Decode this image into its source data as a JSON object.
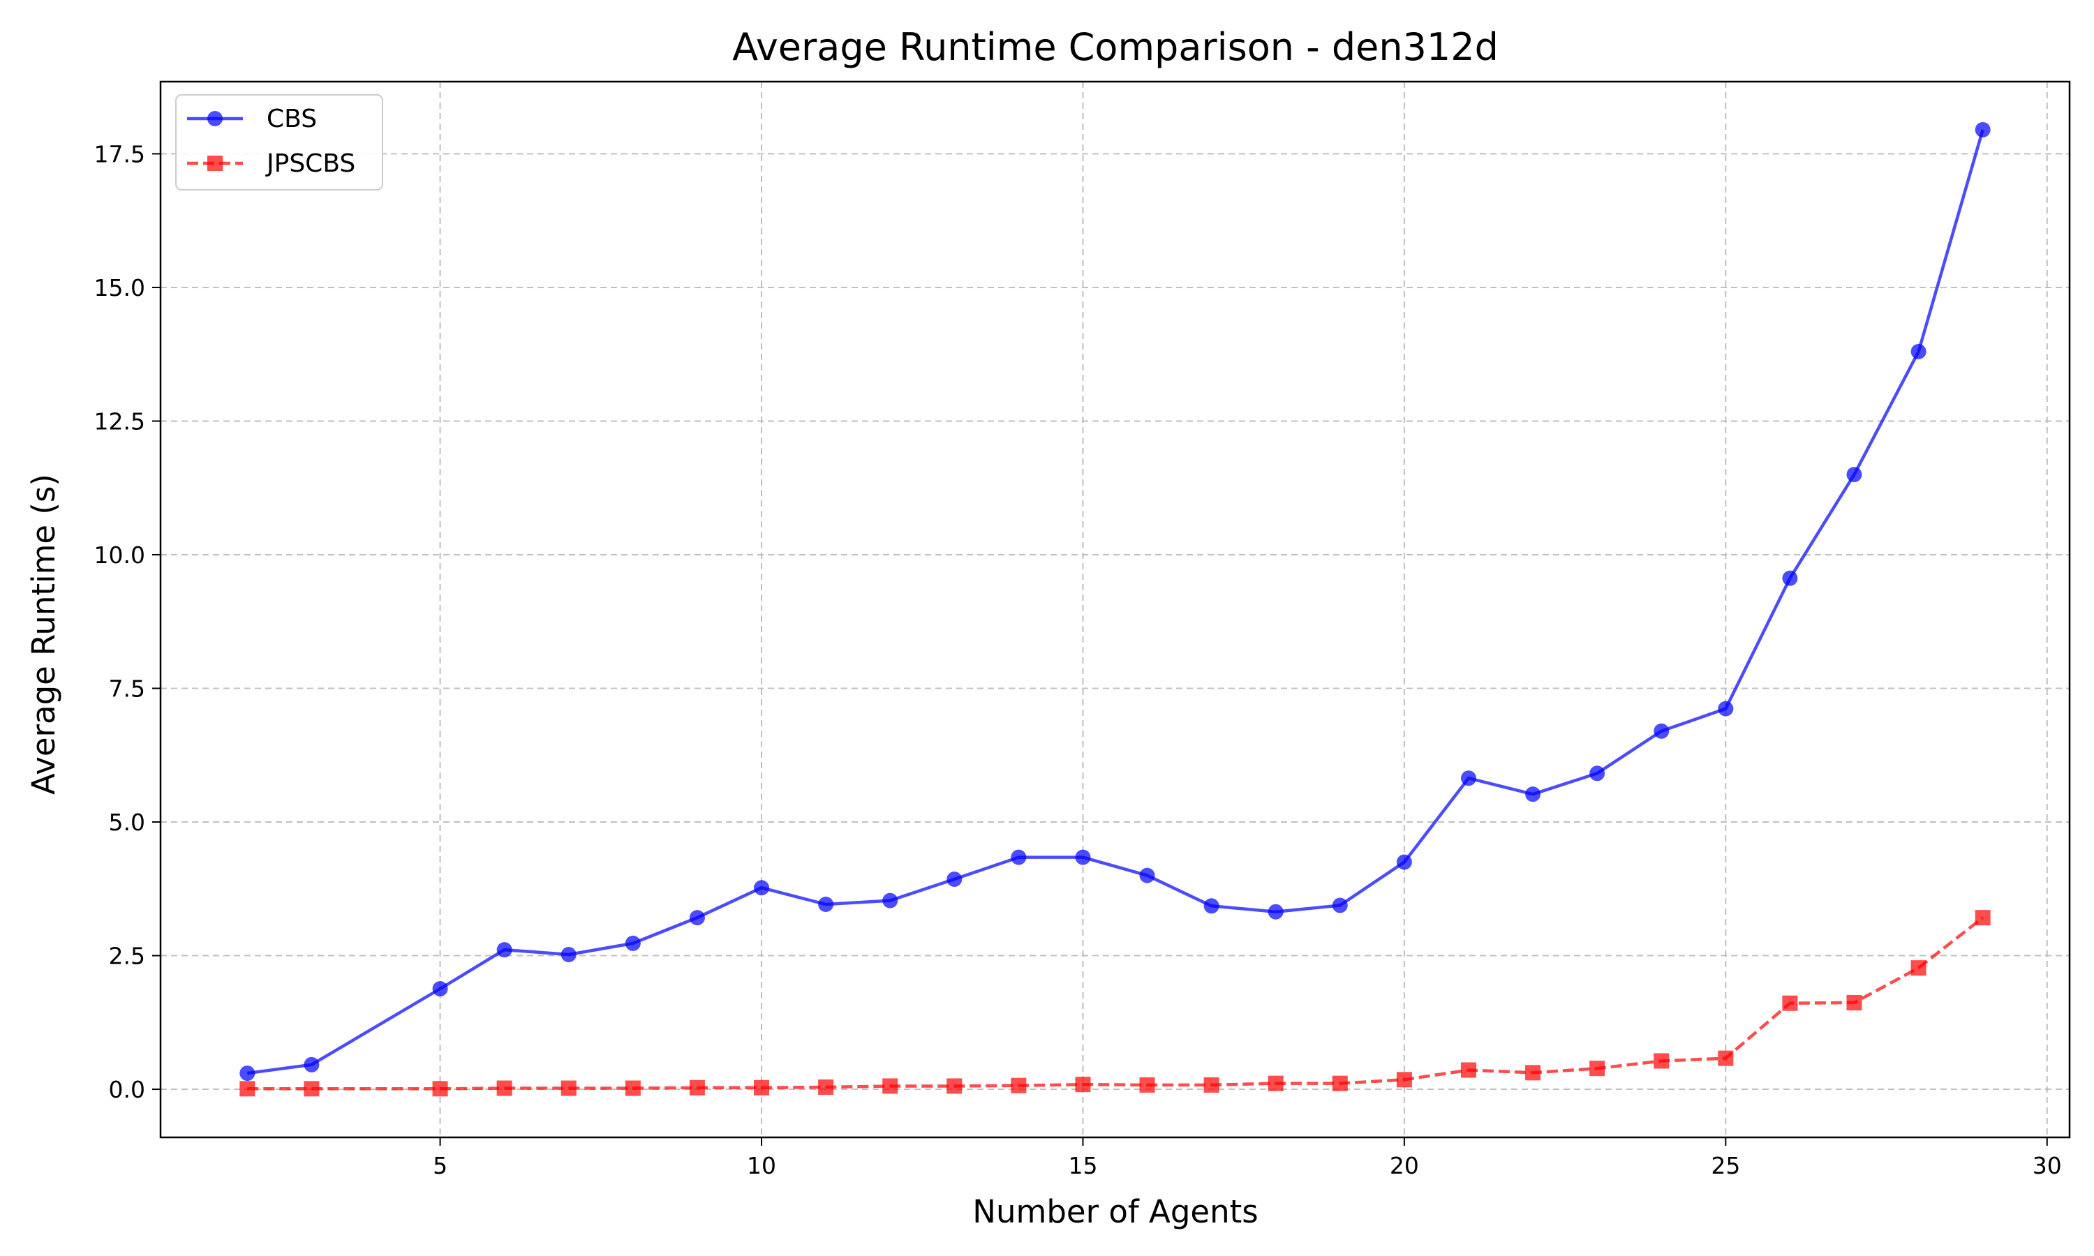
{
  "chart_data": {
    "type": "line",
    "title": "Average Runtime Comparison - den312d",
    "xlabel": "Number of Agents",
    "ylabel": "Average Runtime (s)",
    "xlim": [
      0.65,
      30.35
    ],
    "ylim": [
      -0.9,
      18.85
    ],
    "xticks": [
      5,
      10,
      15,
      20,
      25,
      30
    ],
    "xtick_labels": [
      "5",
      "10",
      "15",
      "20",
      "25",
      "30"
    ],
    "yticks": [
      0.0,
      2.5,
      5.0,
      7.5,
      10.0,
      12.5,
      15.0,
      17.5
    ],
    "ytick_labels": [
      "0.0",
      "2.5",
      "5.0",
      "7.5",
      "10.0",
      "12.5",
      "15.0",
      "17.5"
    ],
    "grid": true,
    "legend_position": "upper-left",
    "x": [
      2,
      3,
      5,
      6,
      7,
      8,
      9,
      10,
      11,
      12,
      13,
      14,
      15,
      16,
      17,
      18,
      19,
      20,
      21,
      22,
      23,
      24,
      25,
      26,
      27,
      28,
      29
    ],
    "series": [
      {
        "name": "CBS",
        "color": "#0000ff",
        "marker": "circle",
        "linestyle": "solid",
        "values": [
          0.3,
          0.46,
          1.88,
          2.61,
          2.52,
          2.73,
          3.21,
          3.77,
          3.46,
          3.53,
          3.93,
          4.34,
          4.34,
          4.0,
          3.43,
          3.32,
          3.44,
          4.25,
          5.82,
          5.52,
          5.91,
          6.7,
          7.12,
          9.56,
          11.5,
          13.8,
          17.95
        ]
      },
      {
        "name": "JPSCBS",
        "color": "#ff0000",
        "marker": "square",
        "linestyle": "dashed",
        "values": [
          0.01,
          0.01,
          0.01,
          0.02,
          0.02,
          0.02,
          0.03,
          0.03,
          0.04,
          0.06,
          0.06,
          0.07,
          0.09,
          0.08,
          0.08,
          0.11,
          0.11,
          0.18,
          0.36,
          0.31,
          0.39,
          0.53,
          0.58,
          1.61,
          1.62,
          2.27,
          3.21
        ]
      }
    ]
  }
}
